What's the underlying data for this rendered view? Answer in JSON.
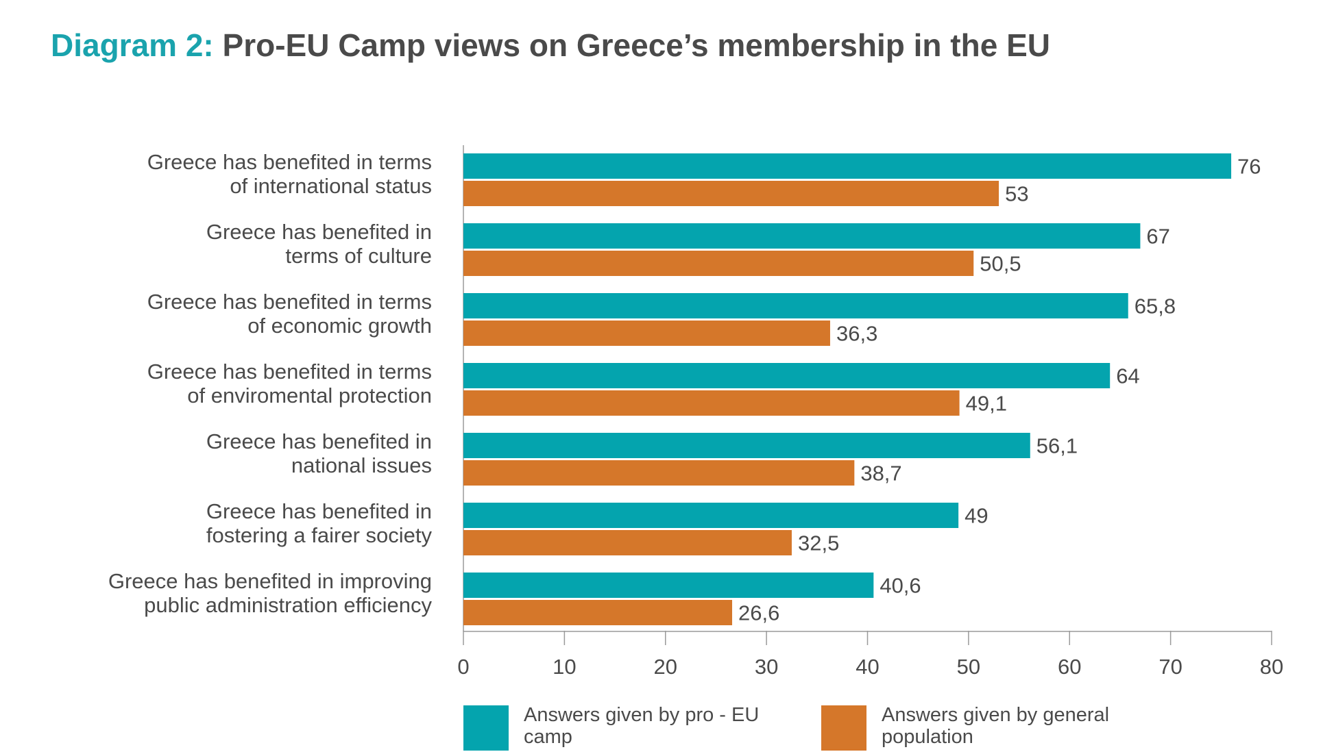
{
  "title": {
    "prefix": "Diagram 2:",
    "main": "Pro-EU Camp views on Greece’s membership in the EU"
  },
  "colors": {
    "pro_eu": "#04a4ae",
    "general": "#d5772a",
    "title_accent": "#1aa3ad",
    "text": "#4a4a4a",
    "axis": "#9a9a9a"
  },
  "legend": {
    "pro_eu_label": "Answers given by pro - EU camp",
    "general_label": "Answers given by general population"
  },
  "chart_data": {
    "type": "bar",
    "orientation": "horizontal",
    "title": "Pro-EU Camp views on Greece’s membership in the EU",
    "categories": [
      [
        "Greece has benefited in terms",
        "of international status"
      ],
      [
        "Greece has benefited in",
        "terms of culture"
      ],
      [
        "Greece has benefited in terms",
        "of economic growth"
      ],
      [
        "Greece has benefited in terms",
        "of enviromental protection"
      ],
      [
        "Greece has benefited in",
        "national issues"
      ],
      [
        "Greece has benefited in",
        "fostering a fairer society"
      ],
      [
        "Greece has benefited in improving",
        "public administration efficiency"
      ]
    ],
    "series": [
      {
        "name": "Answers given by pro - EU camp",
        "values": [
          76,
          67,
          65.8,
          64,
          56.1,
          49,
          40.6
        ],
        "labels": [
          "76",
          "67",
          "65,8",
          "64",
          "56,1",
          "49",
          "40,6"
        ]
      },
      {
        "name": "Answers given by general population",
        "values": [
          53,
          50.5,
          36.3,
          49.1,
          38.7,
          32.5,
          26.6
        ],
        "labels": [
          "53",
          "50,5",
          "36,3",
          "49,1",
          "38,7",
          "32,5",
          "26,6"
        ]
      }
    ],
    "xlim": [
      0,
      80
    ],
    "xticks": [
      0,
      10,
      20,
      30,
      40,
      50,
      60,
      70,
      80
    ],
    "grid": false,
    "legend_position": "bottom"
  }
}
